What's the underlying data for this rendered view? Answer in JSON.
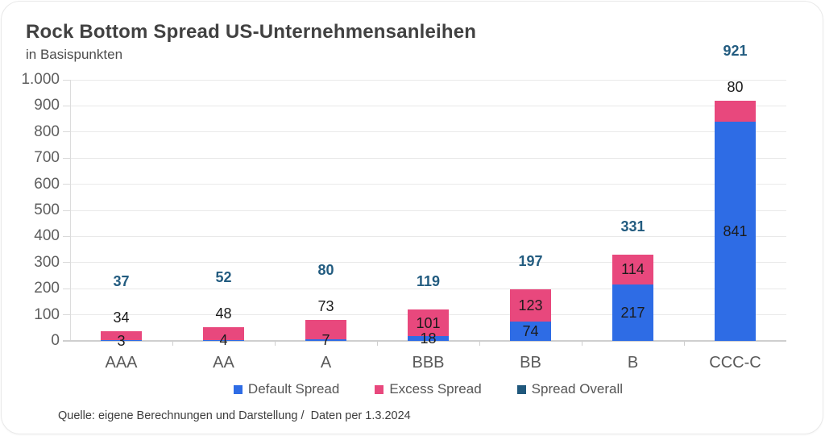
{
  "header": {
    "title": "Rock Bottom Spread US-Unternehmensanleihen",
    "subtitle": "in Basispunkten"
  },
  "legend": [
    {
      "label": "Default Spread",
      "color": "#2e6ce5"
    },
    {
      "label": "Excess Spread",
      "color": "#e8487d"
    },
    {
      "label": "Spread Overall",
      "color": "#20587c"
    }
  ],
  "source": "Quelle: eigene Berechnungen und Darstellung /  Daten per 1.3.2024",
  "chart_data": {
    "type": "bar",
    "stacked": true,
    "title": "Rock Bottom Spread US-Unternehmensanleihen",
    "subtitle": "in Basispunkten",
    "categories": [
      "AAA",
      "AA",
      "A",
      "BBB",
      "BB",
      "B",
      "CCC-C"
    ],
    "series": [
      {
        "name": "Default Spread",
        "color": "#2e6ce5",
        "values": [
          3,
          4,
          7,
          18,
          74,
          217,
          841
        ]
      },
      {
        "name": "Excess Spread",
        "color": "#e8487d",
        "values": [
          34,
          48,
          73,
          101,
          123,
          114,
          80
        ]
      }
    ],
    "totals": {
      "name": "Spread Overall",
      "color": "#235c80",
      "values": [
        37,
        52,
        80,
        119,
        197,
        331,
        921
      ]
    },
    "xlabel": "",
    "ylabel": "in Basispunkten",
    "ylim": [
      0,
      1000
    ],
    "ytick_values": [
      0,
      100,
      200,
      300,
      400,
      500,
      600,
      700,
      800,
      900,
      1000
    ],
    "ytick_labels": [
      "0",
      "100",
      "200",
      "300",
      "400",
      "500",
      "600",
      "700",
      "800",
      "900",
      "1.000"
    ],
    "grid": true,
    "legend_position": "bottom"
  }
}
